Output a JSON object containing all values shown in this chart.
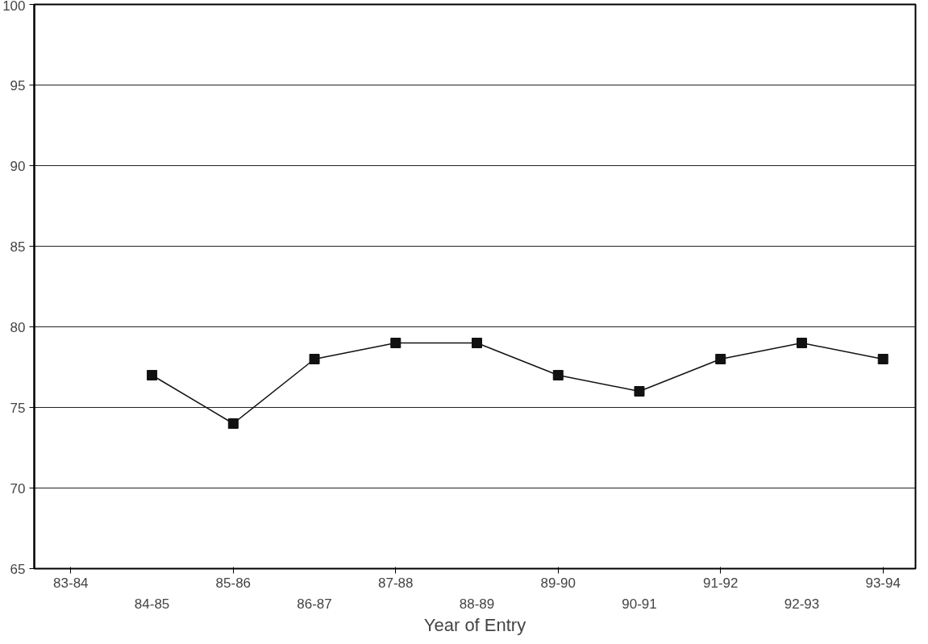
{
  "chart_data": {
    "type": "line",
    "xlabel": "Year of Entry",
    "categories": [
      "83-84",
      "84-85",
      "85-86",
      "86-87",
      "87-88",
      "88-89",
      "89-90",
      "90-91",
      "91-92",
      "92-93",
      "93-94"
    ],
    "series": [
      {
        "color": "#111111",
        "values": [
          null,
          77,
          74,
          78,
          79,
          79,
          77,
          76,
          78,
          79,
          78
        ]
      }
    ],
    "ylim": [
      65,
      100
    ],
    "yticks": [
      65,
      70,
      75,
      80,
      85,
      90,
      95,
      100
    ],
    "grid": "y",
    "marker": "square",
    "line_style": "solid"
  }
}
